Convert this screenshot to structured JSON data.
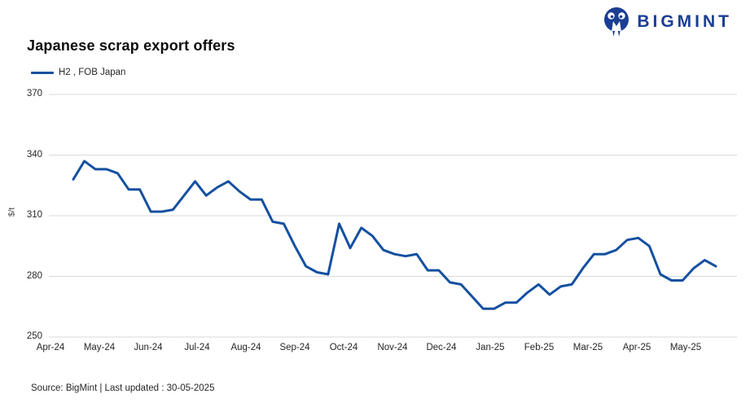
{
  "logo": {
    "text": "BIGMINT"
  },
  "header": {
    "title": "Japanese scrap export offers"
  },
  "legend": {
    "label": "H2 , FOB Japan"
  },
  "footer": {
    "text": "Source: BigMint  | Last updated : 30-05-2025"
  },
  "colors": {
    "line": "#1450a0",
    "logo_blue": "#1b3e94",
    "grid": "#d9d9d9",
    "tick_text": "#262626"
  },
  "chart_data": {
    "type": "line",
    "title": "Japanese scrap export offers",
    "ylabel": "$/t",
    "xlabel": "",
    "ylim": [
      250,
      370
    ],
    "y_ticks": [
      370,
      340,
      310,
      280,
      250
    ],
    "x_tick_labels": [
      "Apr-24",
      "May-24",
      "Jun-24",
      "Jul-24",
      "Aug-24",
      "Sep-24",
      "Oct-24",
      "Nov-24",
      "Dec-24",
      "Jan-25",
      "Feb-25",
      "Mar-25",
      "Apr-25",
      "May-25"
    ],
    "grid": "horizontal",
    "legend_position": "top-left",
    "series": [
      {
        "name": "H2 , FOB Japan",
        "frequency": "weekly",
        "values": [
          328,
          337,
          333,
          333,
          331,
          323,
          323,
          312,
          312,
          313,
          320,
          327,
          320,
          324,
          327,
          322,
          318,
          318,
          307,
          306,
          295,
          285,
          282,
          281,
          306,
          294,
          304,
          300,
          293,
          291,
          290,
          291,
          283,
          283,
          277,
          276,
          270,
          264,
          264,
          267,
          267,
          272,
          276,
          271,
          275,
          276,
          284,
          291,
          291,
          293,
          298,
          299,
          295,
          281,
          278,
          278,
          284,
          288,
          285
        ]
      }
    ]
  }
}
